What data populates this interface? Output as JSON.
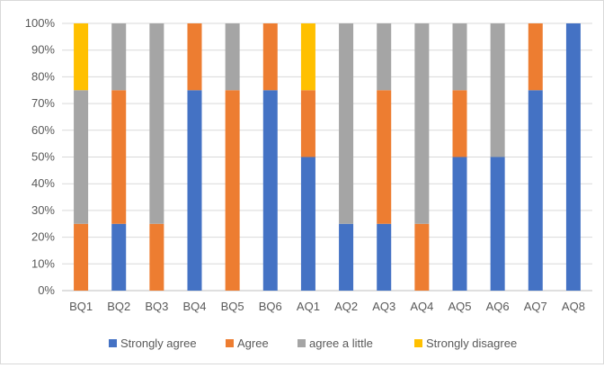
{
  "chart_data": {
    "type": "bar",
    "stacked": true,
    "percent": true,
    "title": "",
    "xlabel": "",
    "ylabel": "",
    "ylim": [
      0,
      100
    ],
    "y_ticks": [
      "0%",
      "10%",
      "20%",
      "30%",
      "40%",
      "50%",
      "60%",
      "70%",
      "80%",
      "90%",
      "100%"
    ],
    "grid": "horizontal",
    "legend_position": "bottom",
    "categories": [
      "BQ1",
      "BQ2",
      "BQ3",
      "BQ4",
      "BQ5",
      "BQ6",
      "AQ1",
      "AQ2",
      "AQ3",
      "AQ4",
      "AQ5",
      "AQ6",
      "AQ7",
      "AQ8"
    ],
    "series": [
      {
        "name": "Strongly agree",
        "color": "#4472C4",
        "values": [
          0,
          25,
          0,
          75,
          0,
          75,
          50,
          25,
          25,
          0,
          50,
          50,
          75,
          100
        ]
      },
      {
        "name": "Agree",
        "color": "#ED7D31",
        "values": [
          25,
          50,
          25,
          25,
          75,
          25,
          25,
          0,
          50,
          25,
          25,
          0,
          25,
          0
        ]
      },
      {
        "name": "agree a little",
        "color": "#A5A5A5",
        "values": [
          50,
          25,
          75,
          0,
          25,
          0,
          0,
          75,
          25,
          75,
          25,
          50,
          0,
          0
        ]
      },
      {
        "name": "Strongly disagree",
        "color": "#FFC000",
        "values": [
          25,
          0,
          0,
          0,
          0,
          0,
          25,
          0,
          0,
          0,
          0,
          0,
          0,
          0
        ]
      }
    ]
  }
}
